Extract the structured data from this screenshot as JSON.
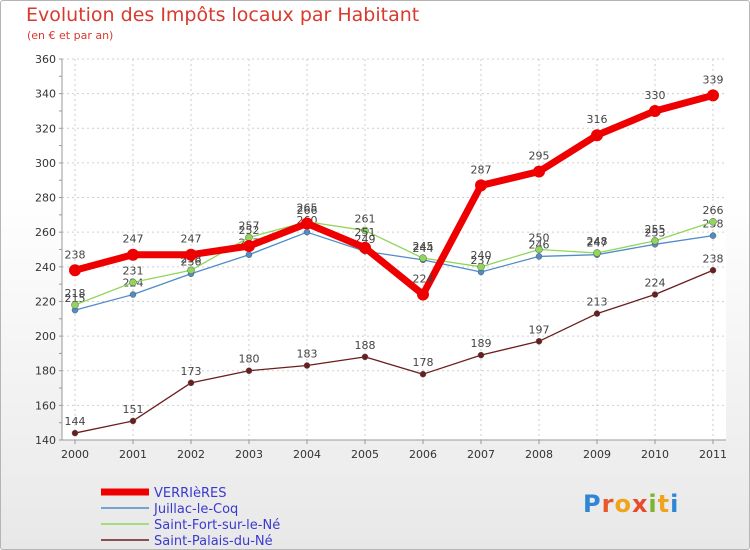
{
  "header": {
    "title": "Evolution des Impôts locaux par Habitant",
    "subtitle": "(en € et par an)"
  },
  "logo": {
    "letters": [
      "P",
      "r",
      "o",
      "x",
      "i",
      "t",
      "i"
    ],
    "colors": [
      "#2f86d4",
      "#e8572a",
      "#f0a31c",
      "#e84a2a",
      "#7ab52a",
      "#f0a31c",
      "#2f86d4"
    ]
  },
  "chart_data": {
    "type": "line",
    "title": "Evolution des Impôts locaux par Habitant",
    "subtitle": "(en € et par an)",
    "x": [
      2000,
      2001,
      2002,
      2003,
      2004,
      2005,
      2006,
      2007,
      2008,
      2009,
      2010,
      2011
    ],
    "x_tick_labels": [
      "2000",
      "2001",
      "2002",
      "2003",
      "2004",
      "2005",
      "2006",
      "2007",
      "2008",
      "2009",
      "2010",
      "2011"
    ],
    "ylim": [
      140,
      360
    ],
    "y_ticks": [
      140,
      160,
      180,
      200,
      220,
      240,
      260,
      280,
      300,
      320,
      340,
      360
    ],
    "grid": true,
    "legend_position": "bottom-left",
    "series": [
      {
        "name": "Saint-Palais-du-Né",
        "color": "#6b1e1e",
        "values": [
          144,
          151,
          173,
          180,
          183,
          188,
          178,
          189,
          197,
          213,
          224,
          238
        ]
      },
      {
        "name": "Juillac-le-Coq",
        "color": "#4f8cc9",
        "values": [
          215,
          224,
          236,
          247,
          260,
          249,
          244,
          237,
          246,
          247,
          253,
          258
        ]
      },
      {
        "name": "Saint-Fort-sur-le-Né",
        "color": "#8fd65a",
        "values": [
          218,
          231,
          238,
          257,
          266,
          261,
          245,
          240,
          250,
          248,
          255,
          266
        ]
      },
      {
        "name": "VERRIèRES",
        "color": "#ee0000",
        "values": [
          238,
          247,
          247,
          252,
          265,
          251,
          224,
          287,
          295,
          316,
          330,
          339
        ]
      }
    ],
    "legend_order": [
      "VERRIèRES",
      "Juillac-le-Coq",
      "Saint-Fort-sur-le-Né",
      "Saint-Palais-du-Né"
    ]
  }
}
